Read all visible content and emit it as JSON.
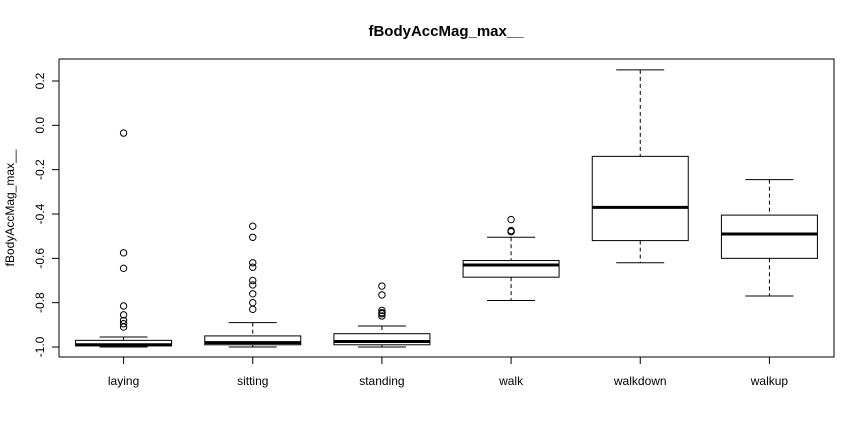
{
  "chart_data": {
    "type": "boxplot",
    "title": "fBodyAccMag_max__",
    "xlabel": "",
    "ylabel": "fBodyAccMag_max__",
    "ylim": [
      -1.05,
      0.3
    ],
    "yticks": [
      -1.0,
      -0.8,
      -0.6,
      -0.4,
      -0.2,
      0.0,
      0.2
    ],
    "ytick_labels": [
      "-1.0",
      "-0.8",
      "-0.6",
      "-0.4",
      "-0.2",
      "0.0",
      "0.2"
    ],
    "categories": [
      "laying",
      "sitting",
      "standing",
      "walk",
      "walkdown",
      "walkup"
    ],
    "boxes": [
      {
        "category": "laying",
        "whisker_low": -1.0,
        "q1": -0.995,
        "median": -0.99,
        "q3": -0.97,
        "whisker_high": -0.955,
        "outliers": [
          -0.035,
          -0.575,
          -0.645,
          -0.815,
          -0.855,
          -0.88,
          -0.895,
          -0.91
        ]
      },
      {
        "category": "sitting",
        "whisker_low": -1.0,
        "q1": -0.99,
        "median": -0.98,
        "q3": -0.95,
        "whisker_high": -0.89,
        "outliers": [
          -0.455,
          -0.505,
          -0.62,
          -0.64,
          -0.7,
          -0.72,
          -0.76,
          -0.8,
          -0.83
        ]
      },
      {
        "category": "standing",
        "whisker_low": -1.0,
        "q1": -0.99,
        "median": -0.975,
        "q3": -0.94,
        "whisker_high": -0.905,
        "outliers": [
          -0.725,
          -0.765,
          -0.835,
          -0.845,
          -0.85,
          -0.86
        ]
      },
      {
        "category": "walk",
        "whisker_low": -0.79,
        "q1": -0.685,
        "median": -0.63,
        "q3": -0.61,
        "whisker_high": -0.505,
        "outliers": [
          -0.425,
          -0.475,
          -0.48
        ]
      },
      {
        "category": "walkdown",
        "whisker_low": -0.62,
        "q1": -0.52,
        "median": -0.37,
        "q3": -0.14,
        "whisker_high": 0.25,
        "outliers": []
      },
      {
        "category": "walkup",
        "whisker_low": -0.77,
        "q1": -0.6,
        "median": -0.49,
        "q3": -0.405,
        "whisker_high": -0.245,
        "outliers": []
      }
    ]
  }
}
